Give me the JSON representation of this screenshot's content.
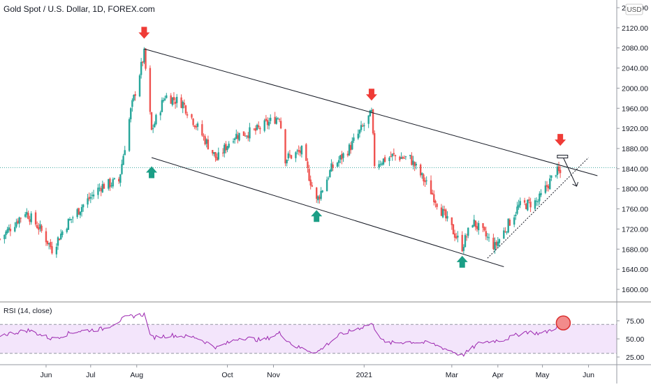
{
  "header": {
    "title": "Gold Spot / U.S. Dollar, 1D, FOREX.com",
    "currency_badge": "USD"
  },
  "rsi_pane": {
    "label": "RSI (14, close)"
  },
  "colors": {
    "up": "#26a69a",
    "down": "#ef5350",
    "rsi_line": "#9c27b0",
    "rsi_band": "#f3e5fb",
    "marker_down": "#ef3b36",
    "marker_up": "#1b9e86"
  },
  "chart_data": [
    {
      "type": "candlestick",
      "title": "Gold Spot / U.S. Dollar, 1D, FOREX.com",
      "y_axis": {
        "ticks": [
          1600,
          1640,
          1680,
          1720,
          1760,
          1800,
          1840,
          1880,
          1920,
          1960,
          2000,
          2040,
          2080,
          2120,
          2160
        ],
        "tick_labels": [
          "1600.00",
          "1640.00",
          "1680.00",
          "1720.00",
          "1760.00",
          "1800.00",
          "1840.00",
          "1880.00",
          "1920.00",
          "1960.00",
          "2000.00",
          "2040.00",
          "2080.00",
          "2120.00",
          "2160.00"
        ],
        "range": [
          1580,
          2180
        ]
      },
      "x_axis": {
        "date_range": [
          "2020-05-01",
          "2021-06-20"
        ],
        "ticks": [
          {
            "date": "2020-06-01",
            "label": "Jun"
          },
          {
            "date": "2020-07-01",
            "label": "Jul"
          },
          {
            "date": "2020-08-01",
            "label": "Aug"
          },
          {
            "date": "2020-10-01",
            "label": "Oct"
          },
          {
            "date": "2020-11-01",
            "label": "Nov"
          },
          {
            "date": "2021-01-01",
            "label": "2021"
          },
          {
            "date": "2021-03-01",
            "label": "Mar"
          },
          {
            "date": "2021-04-01",
            "label": "Apr"
          },
          {
            "date": "2021-05-01",
            "label": "May"
          },
          {
            "date": "2021-06-01",
            "label": "Jun"
          }
        ]
      },
      "current_price_line": 1842,
      "price_path": [
        {
          "date": "2020-05-01",
          "close": 1700
        },
        {
          "date": "2020-05-18",
          "close": 1755
        },
        {
          "date": "2020-05-28",
          "close": 1720
        },
        {
          "date": "2020-06-05",
          "close": 1680
        },
        {
          "date": "2020-06-15",
          "close": 1730
        },
        {
          "date": "2020-06-25",
          "close": 1765
        },
        {
          "date": "2020-07-08",
          "close": 1805
        },
        {
          "date": "2020-07-20",
          "close": 1815
        },
        {
          "date": "2020-07-28",
          "close": 1955
        },
        {
          "date": "2020-08-06",
          "close": 2068
        },
        {
          "date": "2020-08-11",
          "close": 1915
        },
        {
          "date": "2020-08-20",
          "close": 1985
        },
        {
          "date": "2020-09-01",
          "close": 1970
        },
        {
          "date": "2020-09-24",
          "close": 1858
        },
        {
          "date": "2020-10-05",
          "close": 1905
        },
        {
          "date": "2020-10-20",
          "close": 1915
        },
        {
          "date": "2020-11-05",
          "close": 1945
        },
        {
          "date": "2020-11-09",
          "close": 1860
        },
        {
          "date": "2020-11-20",
          "close": 1875
        },
        {
          "date": "2020-11-30",
          "close": 1775
        },
        {
          "date": "2020-12-10",
          "close": 1840
        },
        {
          "date": "2020-12-22",
          "close": 1880
        },
        {
          "date": "2021-01-06",
          "close": 1950
        },
        {
          "date": "2021-01-08",
          "close": 1850
        },
        {
          "date": "2021-01-20",
          "close": 1865
        },
        {
          "date": "2021-02-01",
          "close": 1860
        },
        {
          "date": "2021-02-15",
          "close": 1795
        },
        {
          "date": "2021-02-26",
          "close": 1735
        },
        {
          "date": "2021-03-08",
          "close": 1685
        },
        {
          "date": "2021-03-15",
          "close": 1735
        },
        {
          "date": "2021-03-30",
          "close": 1685
        },
        {
          "date": "2021-04-15",
          "close": 1765
        },
        {
          "date": "2021-04-28",
          "close": 1775
        },
        {
          "date": "2021-05-10",
          "close": 1835
        },
        {
          "date": "2021-05-13",
          "close": 1830
        }
      ],
      "annotations": {
        "channel_upper": [
          {
            "date": "2020-08-06",
            "price": 2078
          },
          {
            "date": "2021-06-07",
            "price": 1826
          }
        ],
        "channel_lower": [
          {
            "date": "2020-08-11",
            "price": 1862
          },
          {
            "date": "2021-04-05",
            "price": 1645
          }
        ],
        "rising_support": [
          {
            "date": "2021-03-25",
            "price": 1662
          },
          {
            "date": "2021-06-01",
            "price": 1862
          }
        ],
        "projection_arrow": [
          {
            "date": "2021-05-15",
            "price": 1862
          },
          {
            "date": "2021-05-24",
            "price": 1805
          }
        ],
        "resistance_box": [
          {
            "date": "2021-05-11",
            "price": 1864
          },
          {
            "date": "2021-05-18",
            "price": 1864
          }
        ],
        "down_arrows": [
          {
            "date": "2020-08-06",
            "price": 2108
          },
          {
            "date": "2021-01-06",
            "price": 1985
          },
          {
            "date": "2021-05-13",
            "price": 1895
          }
        ],
        "up_arrows": [
          {
            "date": "2020-08-11",
            "price": 1835
          },
          {
            "date": "2020-11-30",
            "price": 1748
          },
          {
            "date": "2021-03-08",
            "price": 1657
          }
        ]
      }
    },
    {
      "type": "line",
      "title": "RSI (14, close)",
      "y_axis": {
        "ticks": [
          25,
          50,
          75
        ],
        "tick_labels": [
          "25.00",
          "50.00",
          "75.00"
        ],
        "range": [
          20,
          80
        ]
      },
      "band": [
        30,
        70
      ],
      "series": [
        {
          "points": [
            {
              "date": "2020-05-01",
              "value": 55
            },
            {
              "date": "2020-05-20",
              "value": 62
            },
            {
              "date": "2020-06-05",
              "value": 50
            },
            {
              "date": "2020-06-20",
              "value": 60
            },
            {
              "date": "2020-07-10",
              "value": 64
            },
            {
              "date": "2020-07-25",
              "value": 80
            },
            {
              "date": "2020-08-06",
              "value": 84
            },
            {
              "date": "2020-08-11",
              "value": 52
            },
            {
              "date": "2020-08-25",
              "value": 55
            },
            {
              "date": "2020-09-10",
              "value": 52
            },
            {
              "date": "2020-09-24",
              "value": 38
            },
            {
              "date": "2020-10-10",
              "value": 52
            },
            {
              "date": "2020-10-25",
              "value": 48
            },
            {
              "date": "2020-11-05",
              "value": 58
            },
            {
              "date": "2020-11-15",
              "value": 40
            },
            {
              "date": "2020-11-30",
              "value": 31
            },
            {
              "date": "2020-12-15",
              "value": 55
            },
            {
              "date": "2021-01-06",
              "value": 71
            },
            {
              "date": "2021-01-15",
              "value": 44
            },
            {
              "date": "2021-02-01",
              "value": 46
            },
            {
              "date": "2021-02-15",
              "value": 44
            },
            {
              "date": "2021-03-01",
              "value": 33
            },
            {
              "date": "2021-03-08",
              "value": 27
            },
            {
              "date": "2021-03-20",
              "value": 45
            },
            {
              "date": "2021-04-05",
              "value": 49
            },
            {
              "date": "2021-04-20",
              "value": 60
            },
            {
              "date": "2021-05-01",
              "value": 57
            },
            {
              "date": "2021-05-13",
              "value": 69
            }
          ]
        }
      ],
      "highlight": {
        "date": "2021-05-15",
        "value": 72
      }
    }
  ]
}
